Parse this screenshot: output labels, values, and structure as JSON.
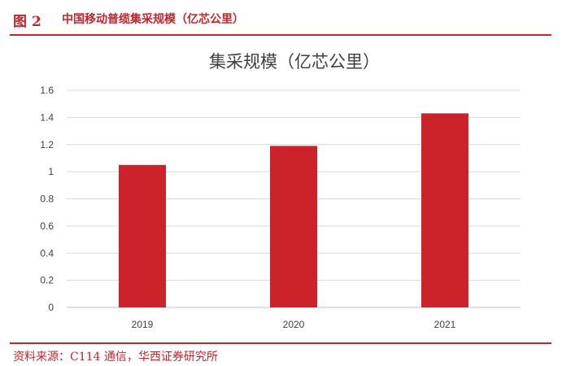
{
  "header": {
    "figure_label": "图 2",
    "figure_title": "中国移动普缆集采规模（亿芯公里）"
  },
  "source": "资料来源：C114 通信，华西证券研究所",
  "colors": {
    "accent": "#c0272d",
    "bar": "#cc2229",
    "grid": "#d9d9d9",
    "text": "#404040"
  },
  "chart_data": {
    "type": "bar",
    "title": "集采规模（亿芯公里）",
    "categories": [
      "2019",
      "2020",
      "2021"
    ],
    "values": [
      1.05,
      1.19,
      1.43
    ],
    "ylim": [
      0,
      1.6
    ],
    "yticks": [
      "0",
      "0.2",
      "0.4",
      "0.6",
      "0.8",
      "1",
      "1.2",
      "1.4",
      "1.6"
    ],
    "grid": true,
    "legend": "none"
  }
}
